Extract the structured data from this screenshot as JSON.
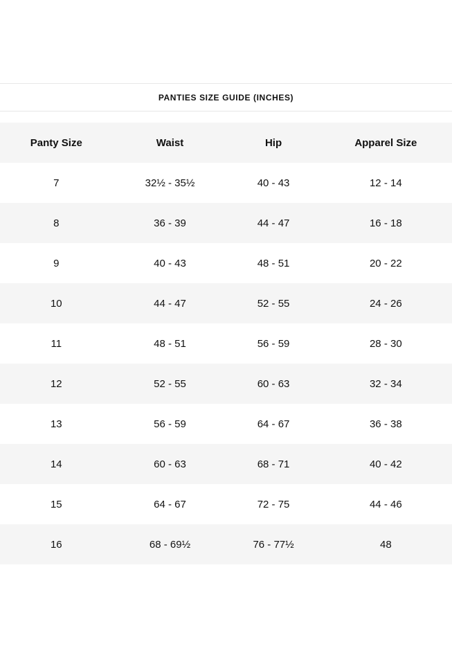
{
  "title": "PANTIES SIZE GUIDE (INCHES)",
  "table": {
    "headers": [
      "Panty Size",
      "Waist",
      "Hip",
      "Apparel Size"
    ],
    "rows": [
      [
        "7",
        "32½ - 35½",
        "40 - 43",
        "12 - 14"
      ],
      [
        "8",
        "36 - 39",
        "44 - 47",
        "16 - 18"
      ],
      [
        "9",
        "40 - 43",
        "48 - 51",
        "20 - 22"
      ],
      [
        "10",
        "44 - 47",
        "52 - 55",
        "24 - 26"
      ],
      [
        "11",
        "48 - 51",
        "56 - 59",
        "28 - 30"
      ],
      [
        "12",
        "52 - 55",
        "60 - 63",
        "32 - 34"
      ],
      [
        "13",
        "56 - 59",
        "64 - 67",
        "36 - 38"
      ],
      [
        "14",
        "60 - 63",
        "68 - 71",
        "40 - 42"
      ],
      [
        "15",
        "64 - 67",
        "72 - 75",
        "44 - 46"
      ],
      [
        "16",
        "68 - 69½",
        "76 - 77½",
        "48"
      ]
    ]
  },
  "colors": {
    "row_alt_background": "#f5f5f5",
    "divider": "#e7e7e7",
    "text": "#111111",
    "background": "#ffffff"
  }
}
